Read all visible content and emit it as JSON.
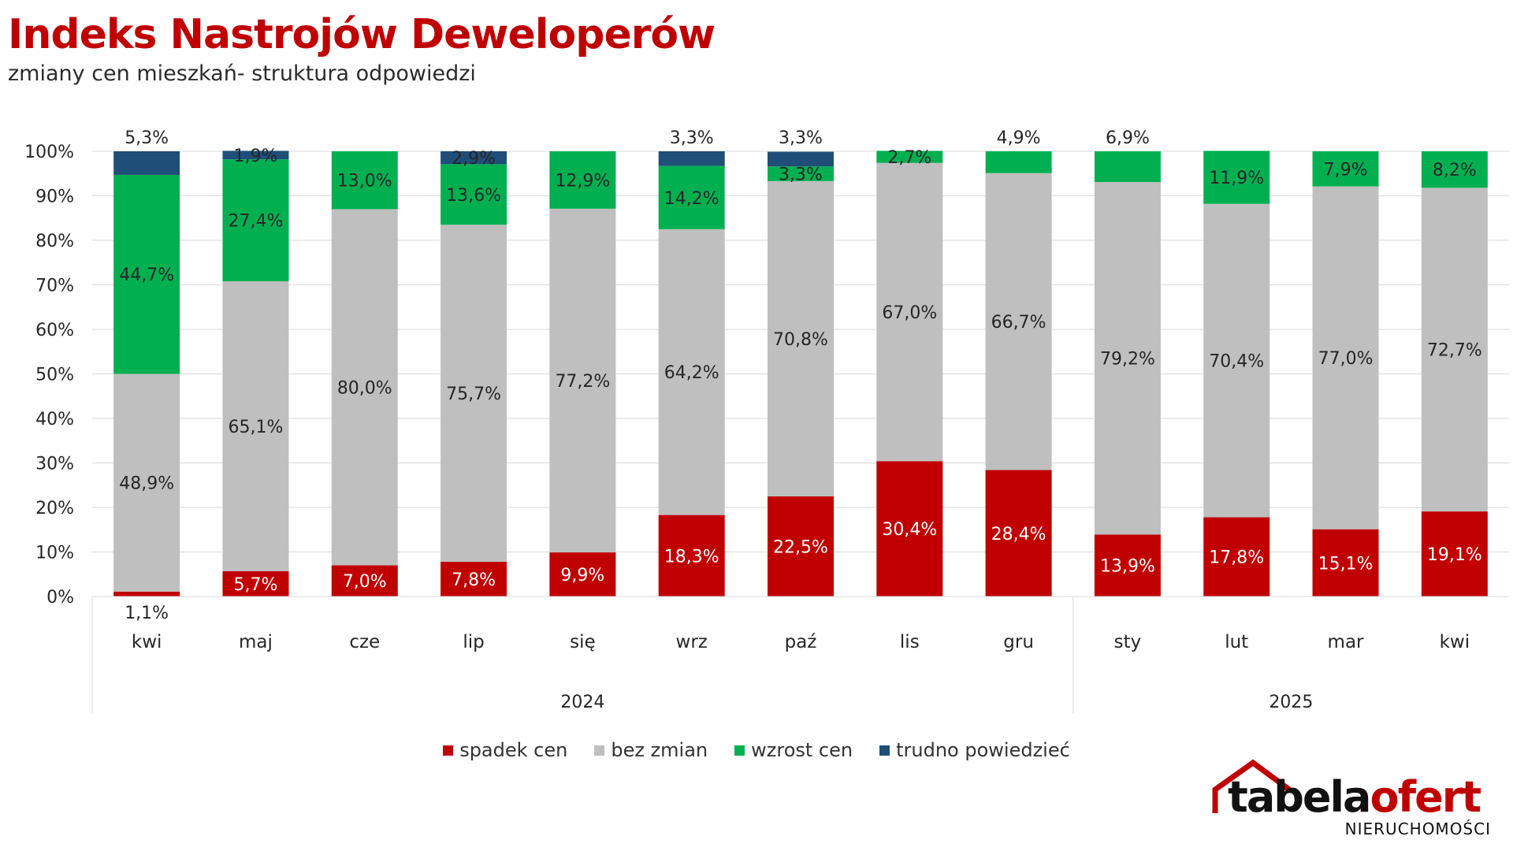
{
  "header": {
    "title": "Indeks Nastrojów Deweloperów",
    "subtitle": "zmiany cen mieszkań- struktura odpowiedzi"
  },
  "chart_data": {
    "type": "bar",
    "stacked": true,
    "title": "Indeks Nastrojów Deweloperów",
    "subtitle": "zmiany cen mieszkań- struktura odpowiedzi",
    "categories": [
      "kwi",
      "maj",
      "cze",
      "lip",
      "się",
      "wrz",
      "paź",
      "lis",
      "gru",
      "sty",
      "lut",
      "mar",
      "kwi"
    ],
    "groups": [
      {
        "label": "2024",
        "count": 9
      },
      {
        "label": "2025",
        "count": 4
      }
    ],
    "series": [
      {
        "name": "spadek cen",
        "color": "#c00000",
        "values": [
          1.1,
          5.7,
          7.0,
          7.8,
          9.9,
          18.3,
          22.5,
          30.4,
          28.4,
          13.9,
          17.8,
          15.1,
          19.1
        ]
      },
      {
        "name": "bez zmian",
        "color": "#bfbfbf",
        "values": [
          48.9,
          65.1,
          80.0,
          75.7,
          77.2,
          64.2,
          70.8,
          67.0,
          66.7,
          79.2,
          70.4,
          77.0,
          72.7
        ]
      },
      {
        "name": "wzrost cen",
        "color": "#00b050",
        "values": [
          44.7,
          27.4,
          13.0,
          13.6,
          12.9,
          14.2,
          3.3,
          2.7,
          4.9,
          6.9,
          11.9,
          7.9,
          8.2
        ]
      },
      {
        "name": "trudno powiedzieć",
        "color": "#1f4e79",
        "values": [
          5.3,
          1.9,
          0,
          2.9,
          0,
          3.3,
          3.3,
          0,
          0,
          0,
          0,
          0,
          0
        ]
      }
    ],
    "value_labels": [
      [
        "1,1%",
        "5,7%",
        "7,0%",
        "7,8%",
        "9,9%",
        "18,3%",
        "22,5%",
        "30,4%",
        "28,4%",
        "13,9%",
        "17,8%",
        "15,1%",
        "19,1%"
      ],
      [
        "48,9%",
        "65,1%",
        "80,0%",
        "75,7%",
        "77,2%",
        "64,2%",
        "70,8%",
        "67,0%",
        "66,7%",
        "79,2%",
        "70,4%",
        "77,0%",
        "72,7%"
      ],
      [
        "44,7%",
        "27,4%",
        "13,0%",
        "13,6%",
        "12,9%",
        "14,2%",
        "3,3%",
        "2,7%",
        "4,9%",
        "6,9%",
        "11,9%",
        "7,9%",
        "8,2%"
      ],
      [
        "5,3%",
        "1,9%",
        "",
        "2,9%",
        "",
        "3,3%",
        "3,3%",
        "",
        "",
        "",
        "",
        "",
        ""
      ]
    ],
    "ylim": [
      0,
      100
    ],
    "yticks": [
      "0%",
      "10%",
      "20%",
      "30%",
      "40%",
      "50%",
      "60%",
      "70%",
      "80%",
      "90%",
      "100%"
    ],
    "grid": true,
    "legend_position": "bottom"
  },
  "legend": [
    {
      "label": "spadek cen",
      "color": "#c00000"
    },
    {
      "label": "bez zmian",
      "color": "#bfbfbf"
    },
    {
      "label": "wzrost cen",
      "color": "#00b050"
    },
    {
      "label": "trudno powiedzieć",
      "color": "#1f4e79"
    }
  ],
  "logo": {
    "wordmark_left": "tabela",
    "wordmark_right": "ofert",
    "wordmark_left_color": "#111111",
    "wordmark_right_color": "#c00000",
    "tagline": "NIERUCHOMOŚCI",
    "icon": "house-outline-icon"
  }
}
